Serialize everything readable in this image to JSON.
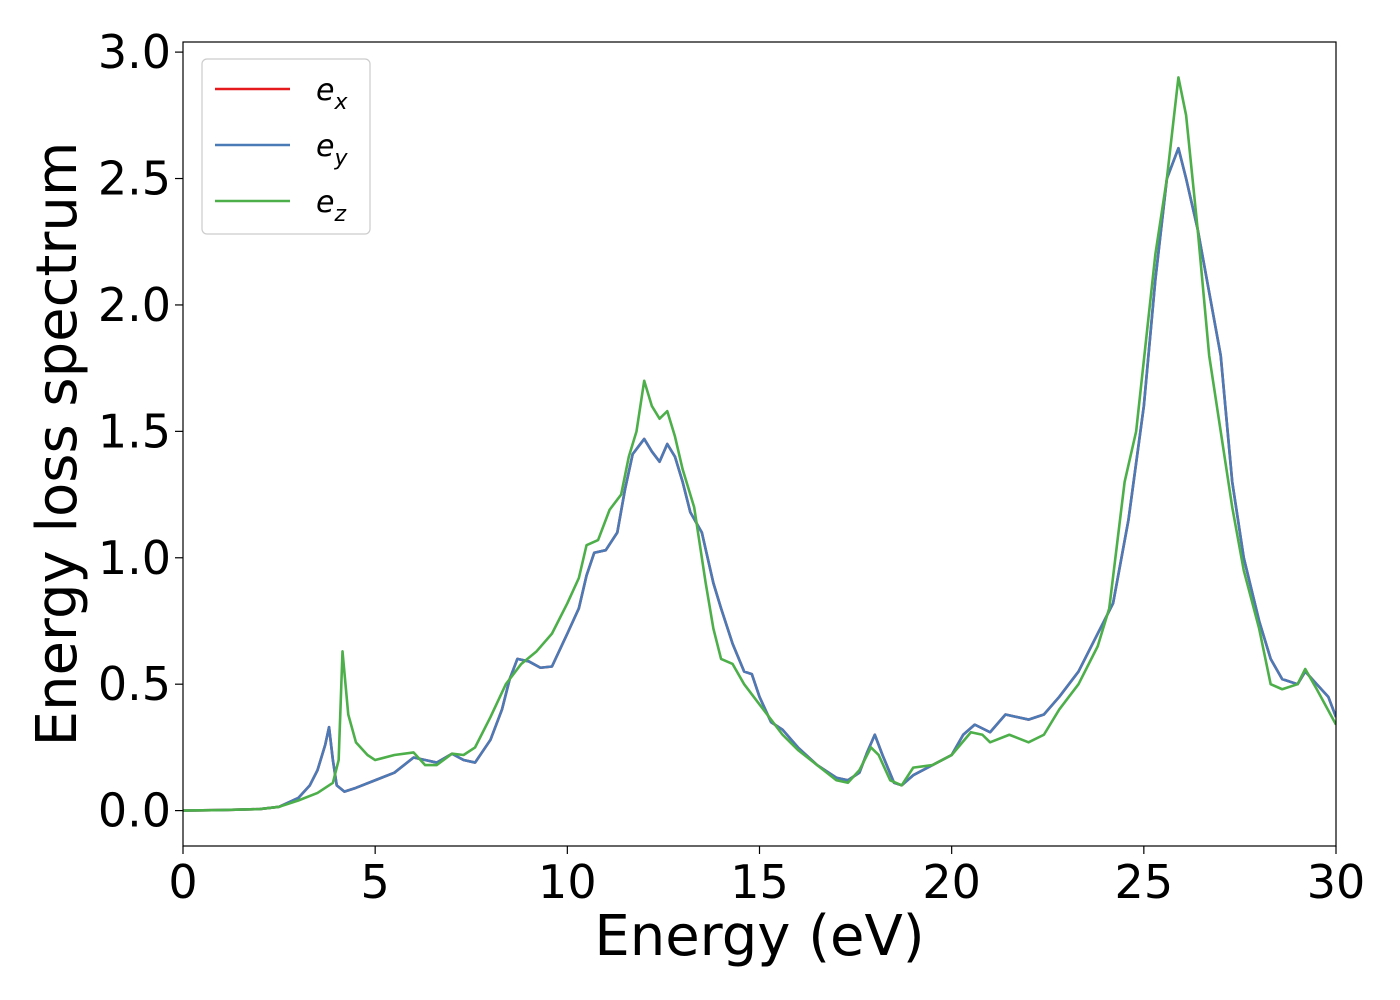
{
  "chart_data": {
    "type": "line",
    "xlabel": "Energy (eV)",
    "ylabel": "Energy loss spectrum",
    "xlim": [
      0,
      30
    ],
    "ylim": [
      -0.14,
      3.04
    ],
    "x_ticks": [
      0,
      5,
      10,
      15,
      20,
      25,
      30
    ],
    "y_ticks": [
      0.0,
      0.5,
      1.0,
      1.5,
      2.0,
      2.5,
      3.0
    ],
    "x_tick_labels": [
      "0",
      "5",
      "10",
      "15",
      "20",
      "25",
      "30"
    ],
    "y_tick_labels": [
      "0.0",
      "0.5",
      "1.0",
      "1.5",
      "2.0",
      "2.5",
      "3.0"
    ],
    "grid": false,
    "legend_position": "top-left",
    "series": [
      {
        "name": "e_x",
        "legend_base": "e",
        "legend_sub": "x",
        "color": "#e41a1c",
        "points": [
          [
            0,
            0.0
          ],
          [
            1,
            0.002
          ],
          [
            2,
            0.006
          ],
          [
            2.5,
            0.015
          ],
          [
            3.0,
            0.05
          ],
          [
            3.3,
            0.1
          ],
          [
            3.5,
            0.16
          ],
          [
            3.7,
            0.26
          ],
          [
            3.8,
            0.33
          ],
          [
            3.9,
            0.2
          ],
          [
            4.0,
            0.1
          ],
          [
            4.2,
            0.075
          ],
          [
            4.5,
            0.09
          ],
          [
            5,
            0.12
          ],
          [
            5.5,
            0.15
          ],
          [
            6.0,
            0.21
          ],
          [
            6.3,
            0.2
          ],
          [
            6.6,
            0.19
          ],
          [
            7.0,
            0.225
          ],
          [
            7.3,
            0.2
          ],
          [
            7.6,
            0.19
          ],
          [
            8.0,
            0.28
          ],
          [
            8.3,
            0.4
          ],
          [
            8.5,
            0.52
          ],
          [
            8.7,
            0.6
          ],
          [
            9.0,
            0.59
          ],
          [
            9.3,
            0.565
          ],
          [
            9.6,
            0.57
          ],
          [
            10.0,
            0.7
          ],
          [
            10.3,
            0.8
          ],
          [
            10.5,
            0.93
          ],
          [
            10.7,
            1.02
          ],
          [
            11.0,
            1.03
          ],
          [
            11.3,
            1.1
          ],
          [
            11.5,
            1.27
          ],
          [
            11.7,
            1.41
          ],
          [
            12.0,
            1.47
          ],
          [
            12.2,
            1.42
          ],
          [
            12.4,
            1.38
          ],
          [
            12.6,
            1.45
          ],
          [
            12.8,
            1.4
          ],
          [
            13.0,
            1.3
          ],
          [
            13.2,
            1.18
          ],
          [
            13.5,
            1.1
          ],
          [
            13.8,
            0.9
          ],
          [
            14.0,
            0.8
          ],
          [
            14.3,
            0.66
          ],
          [
            14.6,
            0.55
          ],
          [
            14.8,
            0.54
          ],
          [
            15.0,
            0.45
          ],
          [
            15.3,
            0.35
          ],
          [
            15.6,
            0.32
          ],
          [
            16.0,
            0.25
          ],
          [
            16.5,
            0.18
          ],
          [
            17.0,
            0.13
          ],
          [
            17.3,
            0.12
          ],
          [
            17.6,
            0.15
          ],
          [
            17.8,
            0.23
          ],
          [
            18.0,
            0.3
          ],
          [
            18.2,
            0.22
          ],
          [
            18.5,
            0.11
          ],
          [
            18.7,
            0.1
          ],
          [
            19.0,
            0.14
          ],
          [
            19.5,
            0.18
          ],
          [
            20.0,
            0.22
          ],
          [
            20.3,
            0.3
          ],
          [
            20.6,
            0.34
          ],
          [
            21.0,
            0.31
          ],
          [
            21.4,
            0.38
          ],
          [
            22.0,
            0.36
          ],
          [
            22.4,
            0.38
          ],
          [
            22.8,
            0.45
          ],
          [
            23.3,
            0.55
          ],
          [
            23.8,
            0.7
          ],
          [
            24.2,
            0.82
          ],
          [
            24.6,
            1.15
          ],
          [
            25.0,
            1.6
          ],
          [
            25.3,
            2.1
          ],
          [
            25.6,
            2.5
          ],
          [
            25.9,
            2.62
          ],
          [
            26.1,
            2.5
          ],
          [
            26.4,
            2.3
          ],
          [
            26.7,
            2.05
          ],
          [
            27.0,
            1.8
          ],
          [
            27.3,
            1.3
          ],
          [
            27.6,
            1.0
          ],
          [
            28.0,
            0.75
          ],
          [
            28.3,
            0.6
          ],
          [
            28.6,
            0.52
          ],
          [
            29.0,
            0.5
          ],
          [
            29.2,
            0.55
          ],
          [
            29.5,
            0.5
          ],
          [
            29.8,
            0.45
          ],
          [
            30.0,
            0.37
          ]
        ]
      },
      {
        "name": "e_y",
        "legend_base": "e",
        "legend_sub": "y",
        "color": "#4a7bb7",
        "points": [
          [
            0,
            0.0
          ],
          [
            1,
            0.002
          ],
          [
            2,
            0.006
          ],
          [
            2.5,
            0.015
          ],
          [
            3.0,
            0.05
          ],
          [
            3.3,
            0.1
          ],
          [
            3.5,
            0.16
          ],
          [
            3.7,
            0.26
          ],
          [
            3.8,
            0.33
          ],
          [
            3.9,
            0.2
          ],
          [
            4.0,
            0.1
          ],
          [
            4.2,
            0.075
          ],
          [
            4.5,
            0.09
          ],
          [
            5,
            0.12
          ],
          [
            5.5,
            0.15
          ],
          [
            6.0,
            0.21
          ],
          [
            6.3,
            0.2
          ],
          [
            6.6,
            0.19
          ],
          [
            7.0,
            0.225
          ],
          [
            7.3,
            0.2
          ],
          [
            7.6,
            0.19
          ],
          [
            8.0,
            0.28
          ],
          [
            8.3,
            0.4
          ],
          [
            8.5,
            0.52
          ],
          [
            8.7,
            0.6
          ],
          [
            9.0,
            0.59
          ],
          [
            9.3,
            0.565
          ],
          [
            9.6,
            0.57
          ],
          [
            10.0,
            0.7
          ],
          [
            10.3,
            0.8
          ],
          [
            10.5,
            0.93
          ],
          [
            10.7,
            1.02
          ],
          [
            11.0,
            1.03
          ],
          [
            11.3,
            1.1
          ],
          [
            11.5,
            1.27
          ],
          [
            11.7,
            1.41
          ],
          [
            12.0,
            1.47
          ],
          [
            12.2,
            1.42
          ],
          [
            12.4,
            1.38
          ],
          [
            12.6,
            1.45
          ],
          [
            12.8,
            1.4
          ],
          [
            13.0,
            1.3
          ],
          [
            13.2,
            1.18
          ],
          [
            13.5,
            1.1
          ],
          [
            13.8,
            0.9
          ],
          [
            14.0,
            0.8
          ],
          [
            14.3,
            0.66
          ],
          [
            14.6,
            0.55
          ],
          [
            14.8,
            0.54
          ],
          [
            15.0,
            0.45
          ],
          [
            15.3,
            0.35
          ],
          [
            15.6,
            0.32
          ],
          [
            16.0,
            0.25
          ],
          [
            16.5,
            0.18
          ],
          [
            17.0,
            0.13
          ],
          [
            17.3,
            0.12
          ],
          [
            17.6,
            0.15
          ],
          [
            17.8,
            0.23
          ],
          [
            18.0,
            0.3
          ],
          [
            18.2,
            0.22
          ],
          [
            18.5,
            0.11
          ],
          [
            18.7,
            0.1
          ],
          [
            19.0,
            0.14
          ],
          [
            19.5,
            0.18
          ],
          [
            20.0,
            0.22
          ],
          [
            20.3,
            0.3
          ],
          [
            20.6,
            0.34
          ],
          [
            21.0,
            0.31
          ],
          [
            21.4,
            0.38
          ],
          [
            22.0,
            0.36
          ],
          [
            22.4,
            0.38
          ],
          [
            22.8,
            0.45
          ],
          [
            23.3,
            0.55
          ],
          [
            23.8,
            0.7
          ],
          [
            24.2,
            0.82
          ],
          [
            24.6,
            1.15
          ],
          [
            25.0,
            1.6
          ],
          [
            25.3,
            2.1
          ],
          [
            25.6,
            2.5
          ],
          [
            25.9,
            2.62
          ],
          [
            26.1,
            2.5
          ],
          [
            26.4,
            2.3
          ],
          [
            26.7,
            2.05
          ],
          [
            27.0,
            1.8
          ],
          [
            27.3,
            1.3
          ],
          [
            27.6,
            1.0
          ],
          [
            28.0,
            0.75
          ],
          [
            28.3,
            0.6
          ],
          [
            28.6,
            0.52
          ],
          [
            29.0,
            0.5
          ],
          [
            29.2,
            0.55
          ],
          [
            29.5,
            0.5
          ],
          [
            29.8,
            0.45
          ],
          [
            30.0,
            0.37
          ]
        ]
      },
      {
        "name": "e_z",
        "legend_base": "e",
        "legend_sub": "z",
        "color": "#4daf4a",
        "points": [
          [
            0,
            0.0
          ],
          [
            1,
            0.002
          ],
          [
            2,
            0.006
          ],
          [
            2.5,
            0.015
          ],
          [
            3.0,
            0.04
          ],
          [
            3.5,
            0.07
          ],
          [
            3.9,
            0.11
          ],
          [
            4.05,
            0.2
          ],
          [
            4.15,
            0.63
          ],
          [
            4.3,
            0.38
          ],
          [
            4.5,
            0.27
          ],
          [
            4.8,
            0.22
          ],
          [
            5.0,
            0.2
          ],
          [
            5.5,
            0.22
          ],
          [
            6.0,
            0.23
          ],
          [
            6.3,
            0.18
          ],
          [
            6.6,
            0.18
          ],
          [
            7.0,
            0.225
          ],
          [
            7.3,
            0.22
          ],
          [
            7.6,
            0.25
          ],
          [
            8.0,
            0.37
          ],
          [
            8.4,
            0.5
          ],
          [
            8.8,
            0.58
          ],
          [
            9.2,
            0.63
          ],
          [
            9.6,
            0.7
          ],
          [
            10.0,
            0.82
          ],
          [
            10.3,
            0.92
          ],
          [
            10.5,
            1.05
          ],
          [
            10.8,
            1.07
          ],
          [
            11.1,
            1.19
          ],
          [
            11.4,
            1.25
          ],
          [
            11.6,
            1.4
          ],
          [
            11.8,
            1.5
          ],
          [
            12.0,
            1.7
          ],
          [
            12.2,
            1.6
          ],
          [
            12.4,
            1.55
          ],
          [
            12.6,
            1.58
          ],
          [
            12.8,
            1.48
          ],
          [
            13.0,
            1.35
          ],
          [
            13.3,
            1.2
          ],
          [
            13.6,
            0.9
          ],
          [
            13.8,
            0.72
          ],
          [
            14.0,
            0.6
          ],
          [
            14.3,
            0.58
          ],
          [
            14.6,
            0.5
          ],
          [
            15.0,
            0.42
          ],
          [
            15.3,
            0.36
          ],
          [
            15.6,
            0.3
          ],
          [
            16.0,
            0.24
          ],
          [
            16.5,
            0.18
          ],
          [
            17.0,
            0.12
          ],
          [
            17.3,
            0.11
          ],
          [
            17.6,
            0.16
          ],
          [
            17.9,
            0.25
          ],
          [
            18.1,
            0.22
          ],
          [
            18.4,
            0.12
          ],
          [
            18.7,
            0.1
          ],
          [
            19.0,
            0.17
          ],
          [
            19.5,
            0.18
          ],
          [
            20.0,
            0.22
          ],
          [
            20.5,
            0.31
          ],
          [
            20.8,
            0.3
          ],
          [
            21.0,
            0.27
          ],
          [
            21.5,
            0.3
          ],
          [
            22.0,
            0.27
          ],
          [
            22.4,
            0.3
          ],
          [
            22.8,
            0.4
          ],
          [
            23.3,
            0.5
          ],
          [
            23.8,
            0.65
          ],
          [
            24.1,
            0.8
          ],
          [
            24.5,
            1.3
          ],
          [
            24.8,
            1.5
          ],
          [
            25.0,
            1.78
          ],
          [
            25.3,
            2.2
          ],
          [
            25.6,
            2.5
          ],
          [
            25.9,
            2.9
          ],
          [
            26.1,
            2.75
          ],
          [
            26.4,
            2.3
          ],
          [
            26.7,
            1.8
          ],
          [
            27.0,
            1.5
          ],
          [
            27.3,
            1.2
          ],
          [
            27.6,
            0.95
          ],
          [
            28.0,
            0.72
          ],
          [
            28.3,
            0.5
          ],
          [
            28.6,
            0.48
          ],
          [
            29.0,
            0.5
          ],
          [
            29.2,
            0.56
          ],
          [
            29.5,
            0.48
          ],
          [
            30.0,
            0.34
          ]
        ]
      }
    ]
  }
}
